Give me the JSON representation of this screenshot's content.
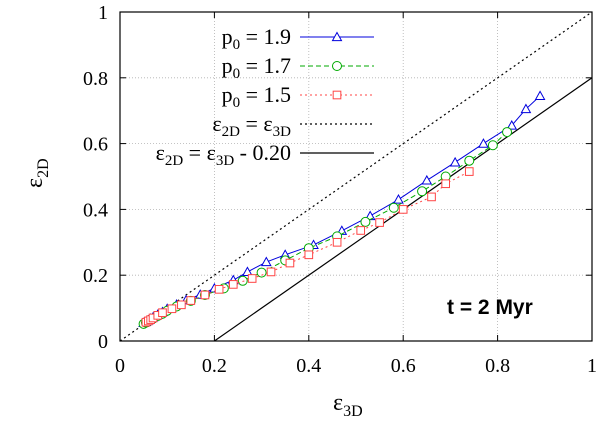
{
  "chart_data": {
    "type": "line",
    "title": "",
    "xlabel": {
      "base": "ε",
      "sub": "3D"
    },
    "ylabel": {
      "base": "ε",
      "sub": "2D"
    },
    "xlim": [
      0,
      1
    ],
    "ylim": [
      0,
      1
    ],
    "xticks": [
      0,
      0.2,
      0.4,
      0.6,
      0.8,
      1
    ],
    "yticks": [
      0,
      0.2,
      0.4,
      0.6,
      0.8,
      1
    ],
    "xtick_labels": [
      "0",
      "0.2",
      "0.4",
      "0.6",
      "0.8",
      "1"
    ],
    "ytick_labels": [
      "0",
      "0.2",
      "0.4",
      "0.6",
      "0.8",
      "1"
    ],
    "grid": true,
    "legend_position": "top-left",
    "annotation": "t = 2 Myr",
    "series": [
      {
        "name": "p0 = 1.9",
        "legend": {
          "pre": "p",
          "sub": "0",
          "post": " = 1.9"
        },
        "color": "#0000dd",
        "dash": "solid",
        "marker": "triangle",
        "x": [
          0.05,
          0.055,
          0.06,
          0.065,
          0.07,
          0.08,
          0.09,
          0.1,
          0.12,
          0.14,
          0.17,
          0.2,
          0.24,
          0.27,
          0.31,
          0.35,
          0.41,
          0.47,
          0.53,
          0.59,
          0.65,
          0.71,
          0.77,
          0.83,
          0.86,
          0.89
        ],
        "y": [
          0.055,
          0.058,
          0.063,
          0.068,
          0.072,
          0.08,
          0.088,
          0.098,
          0.111,
          0.124,
          0.141,
          0.16,
          0.185,
          0.21,
          0.24,
          0.262,
          0.292,
          0.335,
          0.38,
          0.43,
          0.488,
          0.543,
          0.6,
          0.655,
          0.705,
          0.745
        ]
      },
      {
        "name": "p0 = 1.7",
        "legend": {
          "pre": "p",
          "sub": "0",
          "post": " = 1.7"
        },
        "color": "#00aa00",
        "dash": "dashed",
        "marker": "circle",
        "x": [
          0.05,
          0.055,
          0.06,
          0.065,
          0.07,
          0.08,
          0.09,
          0.1,
          0.12,
          0.15,
          0.18,
          0.22,
          0.26,
          0.3,
          0.35,
          0.4,
          0.46,
          0.52,
          0.58,
          0.64,
          0.69,
          0.74,
          0.79,
          0.82
        ],
        "y": [
          0.052,
          0.056,
          0.06,
          0.065,
          0.068,
          0.076,
          0.083,
          0.092,
          0.105,
          0.122,
          0.14,
          0.16,
          0.183,
          0.208,
          0.245,
          0.282,
          0.318,
          0.362,
          0.405,
          0.455,
          0.5,
          0.548,
          0.595,
          0.635
        ]
      },
      {
        "name": "p0 = 1.5",
        "legend": {
          "pre": "p",
          "sub": "0",
          "post": " = 1.5"
        },
        "color": "#ff4444",
        "dash": "dotted",
        "marker": "square",
        "x": [
          0.055,
          0.06,
          0.065,
          0.07,
          0.08,
          0.09,
          0.11,
          0.13,
          0.15,
          0.18,
          0.21,
          0.24,
          0.28,
          0.32,
          0.36,
          0.4,
          0.46,
          0.51,
          0.55,
          0.6,
          0.66,
          0.69,
          0.74
        ],
        "y": [
          0.057,
          0.061,
          0.065,
          0.07,
          0.078,
          0.086,
          0.098,
          0.11,
          0.123,
          0.14,
          0.157,
          0.172,
          0.19,
          0.21,
          0.237,
          0.262,
          0.3,
          0.336,
          0.36,
          0.4,
          0.438,
          0.478,
          0.515
        ]
      }
    ],
    "reference_lines": [
      {
        "name": "ε2D = ε3D",
        "legend": {
          "lhs": "ε",
          "lhs_sub": "2D",
          "eq": " = ε",
          "rhs_sub": "3D",
          "post": ""
        },
        "color": "#000000",
        "dash": "dotted",
        "slope": 1,
        "intercept": 0
      },
      {
        "name": "ε2D = ε3D - 0.20",
        "legend": {
          "lhs": "ε",
          "lhs_sub": "2D",
          "eq": " = ε",
          "rhs_sub": "3D",
          "post": " - 0.20"
        },
        "color": "#000000",
        "dash": "solid",
        "slope": 1,
        "intercept": -0.2
      }
    ]
  }
}
